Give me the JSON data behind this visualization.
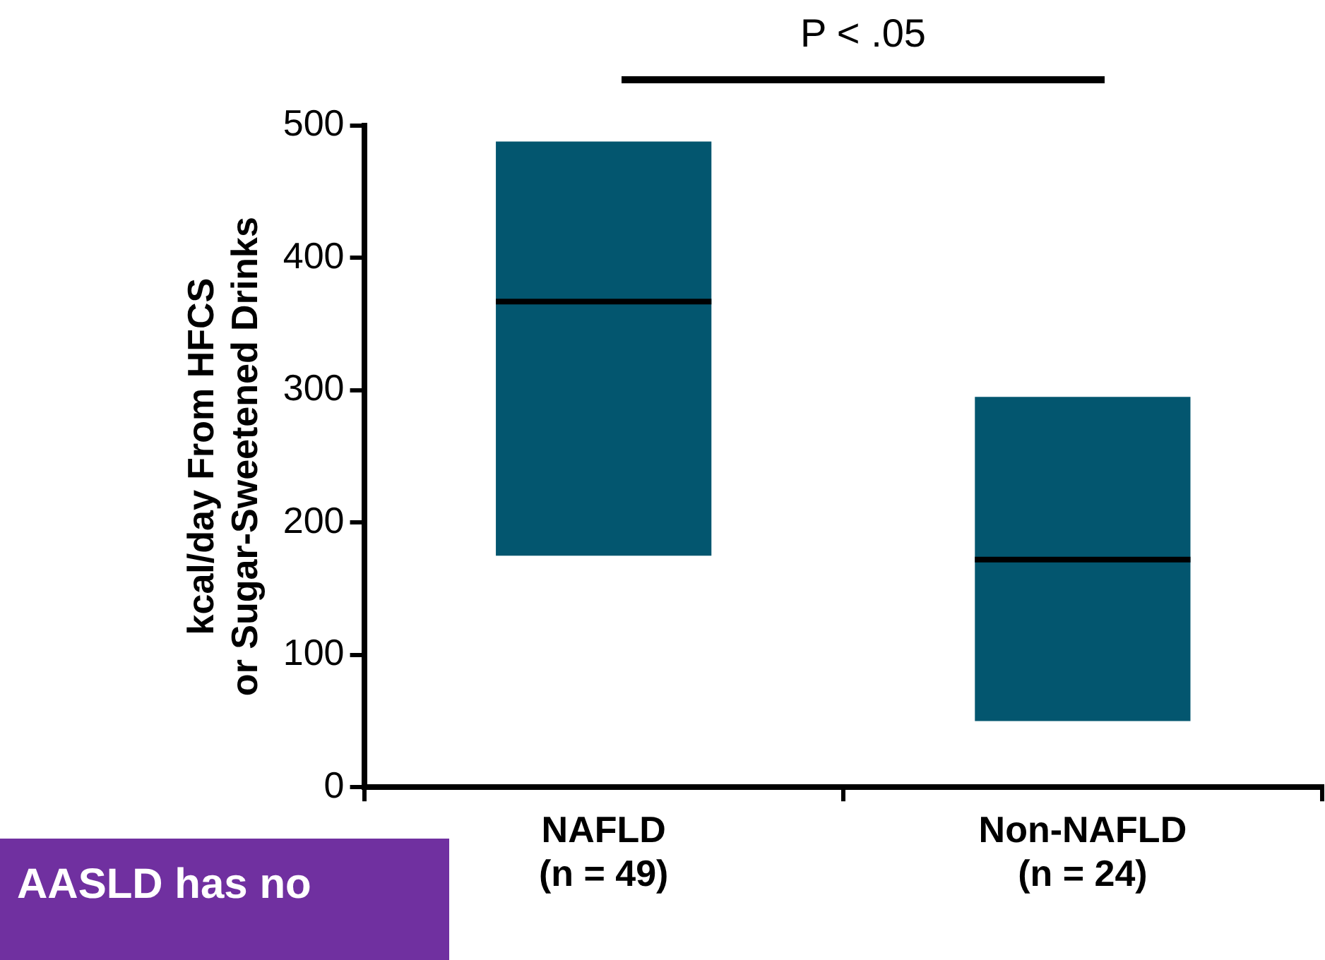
{
  "chart_data": {
    "type": "box",
    "ylabel": "kcal/day From HFCS\nor Sugar-Sweetened Drinks",
    "categories": [
      "NAFLD\n(n = 49)",
      "Non-NAFLD\n(n = 24)"
    ],
    "series": [
      {
        "color": "#03566f",
        "boxes": [
          {
            "low": 175,
            "q1": 175,
            "median": 367,
            "q3": 488,
            "high": 488
          },
          {
            "low": 50,
            "q1": 50,
            "median": 172,
            "q3": 295,
            "high": 295
          }
        ]
      }
    ],
    "ylim": [
      0,
      500
    ],
    "yticks": [
      0,
      100,
      200,
      300,
      400,
      500
    ],
    "grid": false,
    "annotations": [
      "P < .05",
      "AASLD has no"
    ]
  }
}
